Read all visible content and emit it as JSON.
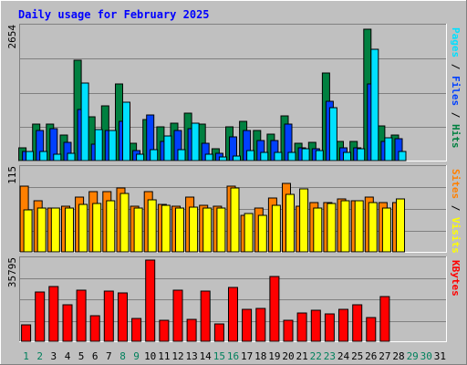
{
  "chart_data": {
    "type": "bar",
    "title": "Daily usage for February 2025",
    "days": [
      "1",
      "2",
      "3",
      "4",
      "5",
      "6",
      "7",
      "8",
      "9",
      "10",
      "11",
      "12",
      "13",
      "14",
      "15",
      "16",
      "17",
      "18",
      "19",
      "20",
      "21",
      "22",
      "23",
      "24",
      "25",
      "26",
      "27",
      "28",
      "29",
      "30",
      "31"
    ],
    "weekend_days": [
      "1",
      "2",
      "8",
      "9",
      "15",
      "16",
      "22",
      "23",
      "29",
      "30"
    ],
    "panels": [
      {
        "id": "hits",
        "max_label": "2654",
        "ymax": 2654,
        "series": [
          {
            "name": "Hits",
            "color": "#008040",
            "values": [
              260,
              730,
              730,
              510,
              1990,
              870,
              1080,
              1510,
              350,
              810,
              670,
              740,
              940,
              730,
              230,
              670,
              770,
              590,
              530,
              880,
              350,
              360,
              1740,
              380,
              380,
              2600,
              690,
              510,
              0,
              0,
              0
            ]
          },
          {
            "name": "Files",
            "color": "#0040ff",
            "values": [
              180,
              590,
              630,
              360,
              1020,
              330,
              590,
              780,
              200,
              900,
              380,
              590,
              630,
              340,
              150,
              470,
              600,
              390,
              400,
              720,
              260,
              230,
              1180,
              260,
              260,
              1510,
              380,
              430,
              0,
              0,
              0
            ]
          },
          {
            "name": "Pages",
            "color": "#00e0ff",
            "values": [
              180,
              180,
              130,
              140,
              1540,
              610,
              600,
              1160,
              130,
              220,
              490,
              210,
              740,
              130,
              80,
              90,
              190,
              170,
              160,
              160,
              230,
              200,
              1040,
              160,
              240,
              2210,
              450,
              180,
              0,
              0,
              0
            ]
          }
        ],
        "label_parts": [
          {
            "text": "Pages",
            "color": "#00e0ff"
          },
          {
            "text": " / ",
            "color": "#000000"
          },
          {
            "text": "Files",
            "color": "#0040ff"
          },
          {
            "text": " / ",
            "color": "#000000"
          },
          {
            "text": "Hits",
            "color": "#008040"
          }
        ]
      },
      {
        "id": "visits",
        "max_label": "115",
        "ymax": 115,
        "series": [
          {
            "name": "Sites",
            "color": "#ff8000",
            "values": [
              90,
              70,
              60,
              62,
              75,
              82,
              82,
              88,
              62,
              83,
              65,
              62,
              75,
              64,
              62,
              90,
              50,
              60,
              74,
              94,
              62,
              68,
              67,
              72,
              70,
              75,
              68,
              68,
              0,
              0,
              0
            ]
          },
          {
            "name": "Visits",
            "color": "#ffff00",
            "values": [
              58,
              60,
              60,
              60,
              65,
              66,
              70,
              80,
              60,
              71,
              64,
              60,
              61,
              60,
              60,
              88,
              53,
              50,
              64,
              79,
              86,
              60,
              66,
              70,
              70,
              67,
              60,
              72,
              0,
              0,
              0
            ]
          }
        ],
        "label_parts": [
          {
            "text": "Sites",
            "color": "#ff8000"
          },
          {
            "text": " / ",
            "color": "#000000"
          },
          {
            "text": "Visits",
            "color": "#ffff00"
          }
        ]
      },
      {
        "id": "kbytes",
        "max_label": "35795",
        "ymax": 35795,
        "series": [
          {
            "name": "KBytes",
            "color": "#ff0000",
            "values": [
              7000,
              21500,
              24000,
              15800,
              22300,
              11200,
              21800,
              21000,
              10100,
              35500,
              9200,
              22300,
              9500,
              21800,
              7600,
              23500,
              13800,
              14300,
              28200,
              9100,
              12500,
              13600,
              11800,
              14000,
              15800,
              10400,
              19300,
              0,
              0,
              0,
              0
            ]
          }
        ],
        "label_parts": [
          {
            "text": "KBytes",
            "color": "#ff0000"
          }
        ]
      }
    ]
  }
}
